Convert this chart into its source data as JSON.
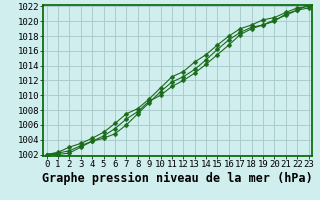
{
  "title": "Graphe pression niveau de la mer (hPa)",
  "bg_color": "#d0eeee",
  "grid_color": "#aacccc",
  "line_color": "#1a6b1a",
  "border_color": "#006600",
  "xlim_min": 0,
  "xlim_max": 23,
  "ylim_min": 1002,
  "ylim_max": 1022,
  "xticks": [
    0,
    1,
    2,
    3,
    4,
    5,
    6,
    7,
    8,
    9,
    10,
    11,
    12,
    13,
    14,
    15,
    16,
    17,
    18,
    19,
    20,
    21,
    22,
    23
  ],
  "yticks": [
    1002,
    1004,
    1006,
    1008,
    1010,
    1012,
    1014,
    1016,
    1018,
    1020,
    1022
  ],
  "series1_x": [
    0,
    1,
    2,
    3,
    4,
    5,
    6,
    7,
    8,
    9,
    10,
    11,
    12,
    13,
    14,
    15,
    16,
    17,
    18,
    19,
    20,
    21,
    22,
    23
  ],
  "series1_y": [
    1002.0,
    1002.2,
    1002.5,
    1003.2,
    1003.8,
    1004.2,
    1004.8,
    1006.0,
    1007.5,
    1009.0,
    1010.5,
    1011.8,
    1012.5,
    1013.5,
    1014.8,
    1016.2,
    1017.5,
    1018.5,
    1019.2,
    1019.5,
    1020.2,
    1020.8,
    1021.5,
    1021.8
  ],
  "series2_x": [
    0,
    1,
    2,
    3,
    4,
    5,
    6,
    7,
    8,
    9,
    10,
    11,
    12,
    13,
    14,
    15,
    16,
    17,
    18,
    19,
    20,
    21,
    22,
    23
  ],
  "series2_y": [
    1002.0,
    1002.3,
    1003.0,
    1003.5,
    1004.2,
    1005.0,
    1006.2,
    1007.5,
    1008.2,
    1009.5,
    1011.0,
    1012.5,
    1013.2,
    1014.5,
    1015.5,
    1016.8,
    1018.0,
    1019.0,
    1019.5,
    1020.2,
    1020.5,
    1021.2,
    1021.8,
    1022.0
  ],
  "series3_x": [
    0,
    1,
    2,
    3,
    4,
    5,
    6,
    7,
    8,
    9,
    10,
    11,
    12,
    13,
    14,
    15,
    16,
    17,
    18,
    19,
    20,
    21,
    22,
    23
  ],
  "series3_y": [
    1002.0,
    1002.0,
    1002.2,
    1003.0,
    1003.8,
    1004.5,
    1005.5,
    1006.8,
    1007.8,
    1009.2,
    1010.0,
    1011.2,
    1012.0,
    1013.0,
    1014.2,
    1015.5,
    1016.8,
    1018.2,
    1019.0,
    1019.5,
    1020.0,
    1021.0,
    1021.5,
    1022.2
  ],
  "font_family": "monospace",
  "title_fontsize": 8.5,
  "tick_fontsize": 6.5
}
